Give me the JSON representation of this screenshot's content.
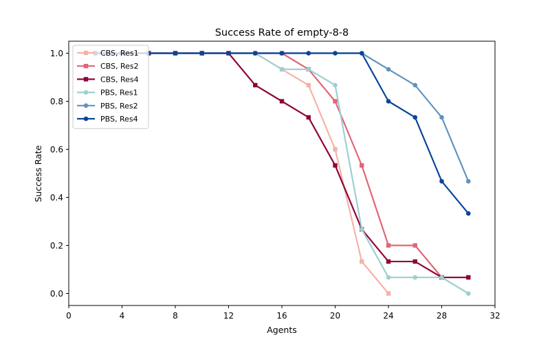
{
  "chart_data": {
    "type": "line",
    "title": "Success Rate of empty-8-8",
    "xlabel": "Agents",
    "ylabel": "Success Rate",
    "xlim": [
      0,
      32
    ],
    "ylim": [
      -0.05,
      1.05
    ],
    "xticks": [
      0,
      4,
      8,
      12,
      16,
      20,
      24,
      28,
      32
    ],
    "yticks": [
      0.0,
      0.2,
      0.4,
      0.6,
      0.8,
      1.0
    ],
    "xtick_labels": [
      "0",
      "4",
      "8",
      "12",
      "16",
      "20",
      "24",
      "28",
      "32"
    ],
    "ytick_labels": [
      "0.0",
      "0.2",
      "0.4",
      "0.6",
      "0.8",
      "1.0"
    ],
    "grid": false,
    "legend_position": "top-left",
    "series": [
      {
        "name": "CBS, Res1",
        "color": "#f7b1a6",
        "marker": "square",
        "x": [
          2,
          4,
          6,
          8,
          10,
          12,
          14,
          16,
          18,
          20,
          22,
          24
        ],
        "y": [
          1.0,
          1.0,
          1.0,
          1.0,
          1.0,
          1.0,
          1.0,
          0.933,
          0.867,
          0.6,
          0.133,
          0.0
        ]
      },
      {
        "name": "CBS, Res2",
        "color": "#e36475",
        "marker": "square",
        "x": [
          2,
          4,
          6,
          8,
          10,
          12,
          14,
          16,
          18,
          20,
          22,
          24,
          26,
          28,
          30
        ],
        "y": [
          1.0,
          1.0,
          1.0,
          1.0,
          1.0,
          1.0,
          1.0,
          1.0,
          0.933,
          0.8,
          0.533,
          0.2,
          0.2,
          0.067,
          0.067
        ]
      },
      {
        "name": "CBS, Res4",
        "color": "#8f0538",
        "marker": "square",
        "x": [
          2,
          4,
          6,
          8,
          10,
          12,
          14,
          16,
          18,
          20,
          22,
          24,
          26,
          28,
          30
        ],
        "y": [
          1.0,
          1.0,
          1.0,
          1.0,
          1.0,
          1.0,
          0.867,
          0.8,
          0.733,
          0.533,
          0.267,
          0.133,
          0.133,
          0.067,
          0.067
        ]
      },
      {
        "name": "PBS, Res1",
        "color": "#9ccfd3",
        "marker": "circle",
        "x": [
          2,
          4,
          6,
          8,
          10,
          12,
          14,
          16,
          18,
          20,
          22,
          24,
          26,
          28,
          30
        ],
        "y": [
          1.0,
          1.0,
          1.0,
          1.0,
          1.0,
          1.0,
          1.0,
          0.933,
          0.933,
          0.867,
          0.267,
          0.067,
          0.067,
          0.067,
          0.0
        ]
      },
      {
        "name": "PBS, Res2",
        "color": "#6293bf",
        "marker": "circle",
        "x": [
          2,
          4,
          6,
          8,
          10,
          12,
          14,
          16,
          18,
          20,
          22,
          24,
          26,
          28,
          30
        ],
        "y": [
          1.0,
          1.0,
          1.0,
          1.0,
          1.0,
          1.0,
          1.0,
          1.0,
          1.0,
          1.0,
          1.0,
          0.933,
          0.867,
          0.733,
          0.467
        ]
      },
      {
        "name": "PBS, Res4",
        "color": "#08449a",
        "marker": "circle",
        "x": [
          2,
          4,
          6,
          8,
          10,
          12,
          14,
          16,
          18,
          20,
          22,
          24,
          26,
          28,
          30
        ],
        "y": [
          1.0,
          1.0,
          1.0,
          1.0,
          1.0,
          1.0,
          1.0,
          1.0,
          1.0,
          1.0,
          1.0,
          0.8,
          0.733,
          0.467,
          0.333
        ]
      }
    ]
  }
}
